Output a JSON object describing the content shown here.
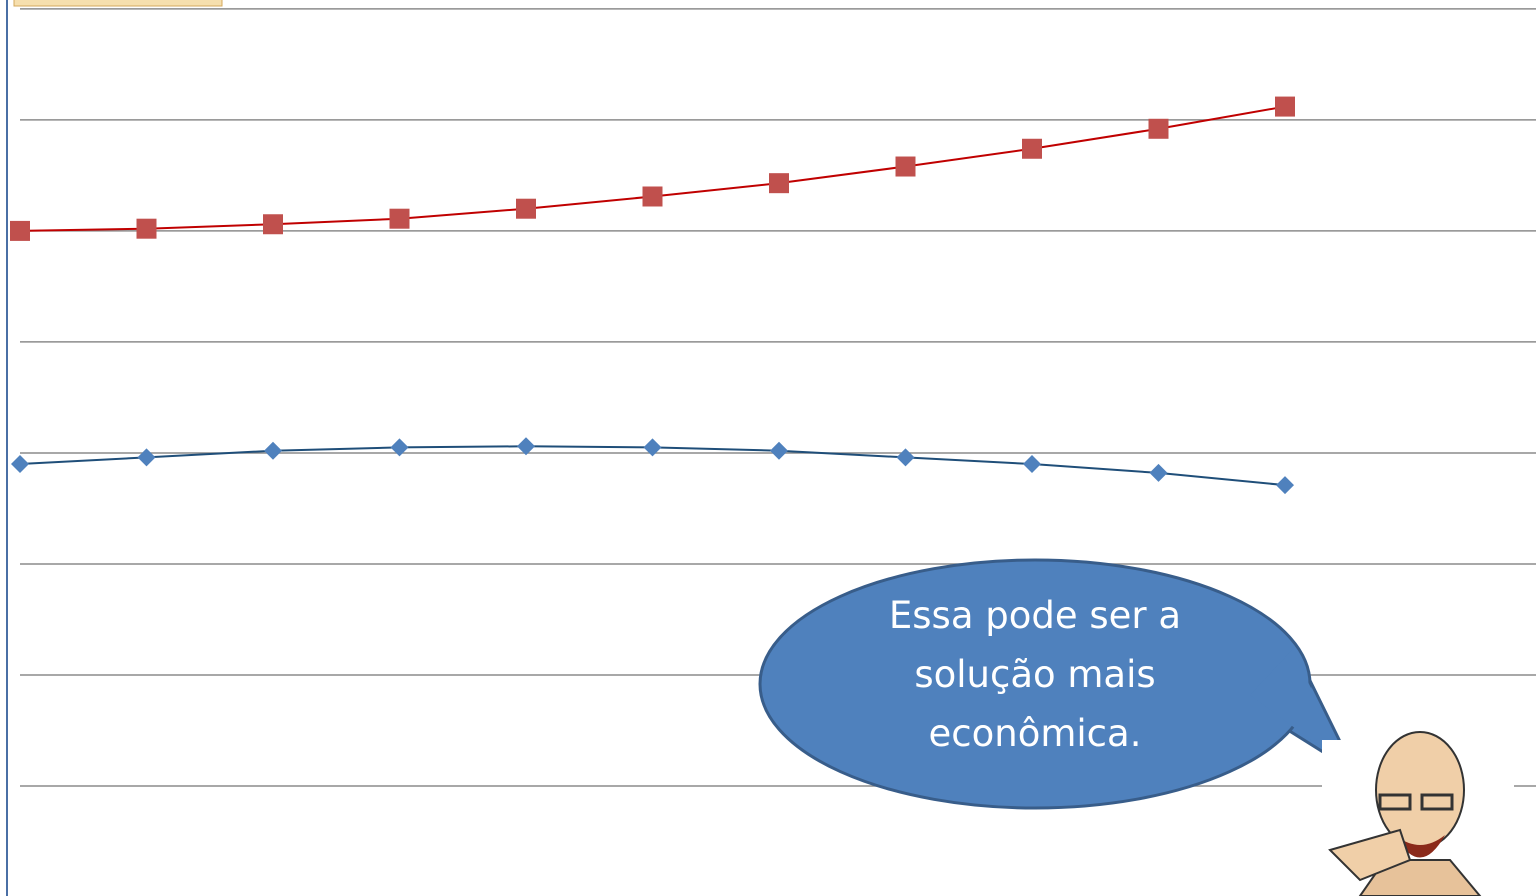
{
  "chart_data": {
    "type": "line",
    "categories": [
      null,
      null,
      null,
      null,
      null,
      null,
      null,
      null,
      null,
      null,
      null
    ],
    "series": [
      {
        "color": "#c0504d",
        "line_color": "#c00000",
        "marker": "square",
        "values": [
          6.0,
          6.02,
          6.06,
          6.11,
          6.2,
          6.31,
          6.43,
          6.58,
          6.74,
          6.92,
          7.12
        ]
      },
      {
        "color": "#4f81bd",
        "line_color": "#1f4e79",
        "marker": "diamond",
        "values": [
          3.9,
          3.96,
          4.02,
          4.05,
          4.06,
          4.05,
          4.02,
          3.96,
          3.9,
          3.82,
          3.71
        ]
      }
    ],
    "ylim": [
      0,
      8.08
    ],
    "yticks": [
      1,
      2,
      3,
      4,
      5,
      6,
      7,
      8
    ],
    "grid": true,
    "annotation": [
      "Essa pode ser a",
      "solução mais",
      "econômica."
    ]
  }
}
